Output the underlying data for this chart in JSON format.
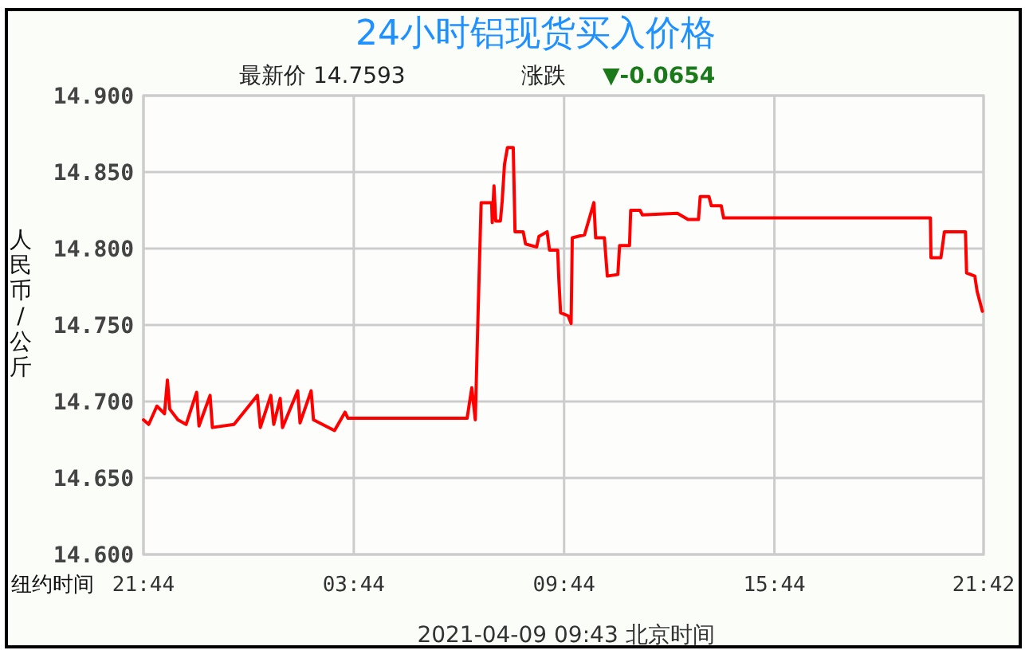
{
  "chart_data": {
    "type": "line",
    "title": "24小时铝现货买入价格",
    "subtitle": "最新价 14.7593",
    "xlabel": "纽约时间",
    "ylabel": "人民币/公斤",
    "annotations": [
      "涨跌",
      "▼-0.0654",
      "2021-04-09 09:43 北京时间"
    ],
    "xlim": [
      "2021-04-07T21:44",
      "2021-04-08T21:42"
    ],
    "ylim": [
      14.6,
      14.9
    ],
    "xticks": [
      {
        "value": "2021-04-07T21:44",
        "label": "21:44"
      },
      {
        "value": "2021-04-08T03:44",
        "label": "03:44"
      },
      {
        "value": "2021-04-08T09:44",
        "label": "09:44"
      },
      {
        "value": "2021-04-08T15:44",
        "label": "15:44"
      },
      {
        "value": "2021-04-08T21:42",
        "label": "21:42"
      }
    ],
    "yticks": [
      {
        "value": 14.6,
        "label": "14.600"
      },
      {
        "value": 14.65,
        "label": "14.650"
      },
      {
        "value": 14.7,
        "label": "14.700"
      },
      {
        "value": 14.75,
        "label": "14.750"
      },
      {
        "value": 14.8,
        "label": "14.800"
      },
      {
        "value": 14.85,
        "label": "14.850"
      },
      {
        "value": 14.9,
        "label": "14.900"
      }
    ],
    "grid": true,
    "marker": "none",
    "line_style": "solid",
    "series": [
      {
        "color": "#ff0000",
        "x": [
          "2021-04-07T21:44",
          "2021-04-07T21:53",
          "2021-04-07T22:07",
          "2021-04-07T22:20",
          "2021-04-07T22:25",
          "2021-04-07T22:29",
          "2021-04-07T22:43",
          "2021-04-07T22:57",
          "2021-04-07T23:15",
          "2021-04-07T23:19",
          "2021-04-07T23:38",
          "2021-04-07T23:42",
          "2021-04-08T00:19",
          "2021-04-08T00:59",
          "2021-04-08T01:04",
          "2021-04-08T01:22",
          "2021-04-08T01:27",
          "2021-04-08T01:38",
          "2021-04-08T01:42",
          "2021-04-08T02:08",
          "2021-04-08T02:12",
          "2021-04-08T02:31",
          "2021-04-08T02:35",
          "2021-04-08T03:11",
          "2021-04-08T03:29",
          "2021-04-08T03:34",
          "2021-04-08T06:58",
          "2021-04-08T07:06",
          "2021-04-08T07:12",
          "2021-04-08T07:17",
          "2021-04-08T07:22",
          "2021-04-08T07:40",
          "2021-04-08T07:41",
          "2021-04-08T07:44",
          "2021-04-08T07:47",
          "2021-04-08T07:55",
          "2021-04-08T07:58",
          "2021-04-08T08:02",
          "2021-04-08T08:07",
          "2021-04-08T08:17",
          "2021-04-08T08:20",
          "2021-04-08T08:34",
          "2021-04-08T08:38",
          "2021-04-08T08:57",
          "2021-04-08T09:01",
          "2021-04-08T09:15",
          "2021-04-08T09:19",
          "2021-04-08T09:33",
          "2021-04-08T09:35",
          "2021-04-08T09:38",
          "2021-04-08T09:51",
          "2021-04-08T09:56",
          "2021-04-08T09:58",
          "2021-04-08T10:19",
          "2021-04-08T10:35",
          "2021-04-08T10:38",
          "2021-04-08T10:53",
          "2021-04-08T10:58",
          "2021-04-08T11:16",
          "2021-04-08T11:19",
          "2021-04-08T11:36",
          "2021-04-08T11:38",
          "2021-04-08T11:54",
          "2021-04-08T11:58",
          "2021-04-08T12:58",
          "2021-04-08T13:16",
          "2021-04-08T13:34",
          "2021-04-08T13:37",
          "2021-04-08T13:52",
          "2021-04-08T13:56",
          "2021-04-08T14:13",
          "2021-04-08T14:17",
          "2021-04-08T20:11",
          "2021-04-08T20:12",
          "2021-04-08T20:29",
          "2021-04-08T20:35",
          "2021-04-08T21:11",
          "2021-04-08T21:13",
          "2021-04-08T21:27",
          "2021-04-08T21:31",
          "2021-04-08T21:40"
        ],
        "values": [
          14.688,
          14.685,
          14.697,
          14.692,
          14.714,
          14.695,
          14.688,
          14.685,
          14.706,
          14.684,
          14.704,
          14.683,
          14.685,
          14.704,
          14.683,
          14.704,
          14.685,
          14.702,
          14.683,
          14.707,
          14.686,
          14.707,
          14.688,
          14.681,
          14.693,
          14.689,
          14.689,
          14.709,
          14.688,
          14.761,
          14.83,
          14.83,
          14.817,
          14.841,
          14.818,
          14.818,
          14.831,
          14.855,
          14.866,
          14.866,
          14.811,
          14.811,
          14.803,
          14.801,
          14.808,
          14.811,
          14.799,
          14.799,
          14.78,
          14.758,
          14.756,
          14.751,
          14.807,
          14.809,
          14.83,
          14.807,
          14.807,
          14.782,
          14.783,
          14.802,
          14.802,
          14.825,
          14.825,
          14.822,
          14.823,
          14.819,
          14.819,
          14.834,
          14.834,
          14.828,
          14.828,
          14.82,
          14.82,
          14.794,
          14.794,
          14.811,
          14.811,
          14.784,
          14.782,
          14.772,
          14.759
        ]
      }
    ]
  }
}
